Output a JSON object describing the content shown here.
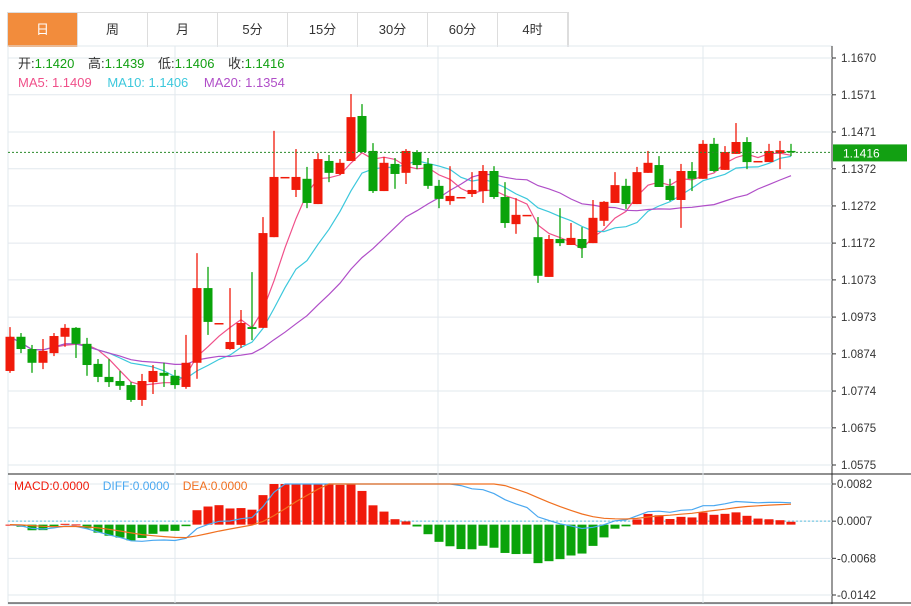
{
  "tabs": [
    "日",
    "周",
    "月",
    "5分",
    "15分",
    "30分",
    "60分",
    "4时"
  ],
  "active_tab": 0,
  "legend": {
    "open_label": "开:",
    "open": "1.1420",
    "high_label": "高:",
    "high": "1.1439",
    "low_label": "低:",
    "low": "1.1406",
    "close_label": "收:",
    "close": "1.1416",
    "ma5": "MA5: 1.1409",
    "ma10": "MA10: 1.1406",
    "ma20": "MA20: 1.1354"
  },
  "macd_legend": {
    "macd": "MACD:0.0000",
    "diff": "DIFF:0.0000",
    "dea": "DEA:0.0000"
  },
  "current_price": "1.1416",
  "colors": {
    "up": "#f01a0a",
    "down": "#0aa30a",
    "ma5": "#f0508a",
    "ma10": "#3cc8dc",
    "ma20": "#b04ec8",
    "diff": "#4aa8f0",
    "dea": "#f07020",
    "accent": "#f28c3c"
  },
  "chart_data": {
    "type": "candlestick",
    "price_axis": {
      "ylim": [
        1.0575,
        1.167
      ],
      "ticks": [
        "1.1670",
        "1.1571",
        "1.1471",
        "1.1372",
        "1.1272",
        "1.1172",
        "1.1073",
        "1.0973",
        "1.0874",
        "1.0774",
        "1.0675",
        "1.0575"
      ]
    },
    "macd_axis": {
      "ylim": [
        -0.0142,
        0.0082
      ],
      "ticks": [
        "0.0082",
        "0.0007",
        "-0.0068",
        "-0.0142"
      ]
    },
    "ohlc": [
      [
        1.0828,
        1.0946,
        1.0823,
        1.092
      ],
      [
        1.092,
        1.093,
        1.0876,
        1.0887
      ],
      [
        1.0887,
        1.0898,
        1.0823,
        1.085
      ],
      [
        1.085,
        1.0914,
        1.0833,
        1.0882
      ],
      [
        1.0876,
        1.093,
        1.0868,
        1.0922
      ],
      [
        1.092,
        1.0954,
        1.0893,
        1.0944
      ],
      [
        1.0944,
        1.0946,
        1.0863,
        1.0901
      ],
      [
        1.0901,
        1.0917,
        1.0815,
        1.0844
      ],
      [
        1.0847,
        1.086,
        1.0798,
        1.0812
      ],
      [
        1.0812,
        1.086,
        1.0785,
        1.0798
      ],
      [
        1.0801,
        1.0828,
        1.0777,
        1.0788
      ],
      [
        1.079,
        1.0798,
        1.0745,
        1.075
      ],
      [
        1.075,
        1.082,
        1.0734,
        1.0801
      ],
      [
        1.0798,
        1.0844,
        1.0766,
        1.0828
      ],
      [
        1.0823,
        1.085,
        1.0785,
        1.0815
      ],
      [
        1.0815,
        1.0831,
        1.078,
        1.079
      ],
      [
        1.0785,
        1.0925,
        1.078,
        1.085
      ],
      [
        1.085,
        1.1145,
        1.0807,
        1.1051
      ],
      [
        1.1051,
        1.1108,
        1.0925,
        1.096
      ],
      [
        1.0957,
        1.0957,
        1.0957,
        1.0957
      ],
      [
        1.0887,
        1.1051,
        1.0885,
        1.0906
      ],
      [
        1.0898,
        1.0992,
        1.089,
        1.0957
      ],
      [
        1.0946,
        1.1094,
        1.0911,
        1.0941
      ],
      [
        1.0944,
        1.1242,
        1.0944,
        1.1199
      ],
      [
        1.1188,
        1.1474,
        1.1188,
        1.135
      ],
      [
        1.135,
        1.135,
        1.135,
        1.135
      ],
      [
        1.1315,
        1.1425,
        1.1296,
        1.135
      ],
      [
        1.1345,
        1.1377,
        1.1266,
        1.128
      ],
      [
        1.1277,
        1.1414,
        1.1277,
        1.1398
      ],
      [
        1.1393,
        1.1409,
        1.1336,
        1.1361
      ],
      [
        1.1358,
        1.1398,
        1.1355,
        1.1388
      ],
      [
        1.1393,
        1.1573,
        1.1393,
        1.1511
      ],
      [
        1.1514,
        1.1546,
        1.1417,
        1.1417
      ],
      [
        1.142,
        1.1441,
        1.1307,
        1.1312
      ],
      [
        1.1312,
        1.1404,
        1.1312,
        1.1388
      ],
      [
        1.1385,
        1.1401,
        1.1318,
        1.1358
      ],
      [
        1.1361,
        1.1425,
        1.1331,
        1.142
      ],
      [
        1.1417,
        1.1422,
        1.1371,
        1.1382
      ],
      [
        1.1385,
        1.1401,
        1.1318,
        1.1326
      ],
      [
        1.1326,
        1.1342,
        1.1266,
        1.1291
      ],
      [
        1.1285,
        1.1379,
        1.1275,
        1.1299
      ],
      [
        1.1296,
        1.1296,
        1.1296,
        1.1296
      ],
      [
        1.1304,
        1.1363,
        1.1296,
        1.1315
      ],
      [
        1.1312,
        1.1382,
        1.128,
        1.1366
      ],
      [
        1.1366,
        1.1379,
        1.1291,
        1.1296
      ],
      [
        1.1296,
        1.1336,
        1.1213,
        1.1226
      ],
      [
        1.1223,
        1.1293,
        1.1197,
        1.1248
      ],
      [
        1.1248,
        1.1248,
        1.1248,
        1.1248
      ],
      [
        1.1188,
        1.1242,
        1.1065,
        1.1084
      ],
      [
        1.1081,
        1.1194,
        1.1081,
        1.1183
      ],
      [
        1.1183,
        1.1266,
        1.1164,
        1.1172
      ],
      [
        1.1167,
        1.1226,
        1.1167,
        1.1186
      ],
      [
        1.1183,
        1.1215,
        1.1132,
        1.1159
      ],
      [
        1.1172,
        1.1288,
        1.1172,
        1.124
      ],
      [
        1.1232,
        1.1285,
        1.1218,
        1.1283
      ],
      [
        1.128,
        1.1363,
        1.128,
        1.1328
      ],
      [
        1.1326,
        1.1345,
        1.1264,
        1.1277
      ],
      [
        1.1277,
        1.1377,
        1.1277,
        1.1363
      ],
      [
        1.1361,
        1.142,
        1.1361,
        1.1388
      ],
      [
        1.1382,
        1.1406,
        1.1323,
        1.1323
      ],
      [
        1.1326,
        1.1345,
        1.1285,
        1.1288
      ],
      [
        1.1288,
        1.1385,
        1.1213,
        1.1366
      ],
      [
        1.1366,
        1.139,
        1.1312,
        1.1345
      ],
      [
        1.1345,
        1.1449,
        1.1345,
        1.1439
      ],
      [
        1.1439,
        1.1455,
        1.1363,
        1.1366
      ],
      [
        1.1369,
        1.1433,
        1.1369,
        1.1417
      ],
      [
        1.1412,
        1.1495,
        1.1412,
        1.1444
      ],
      [
        1.1444,
        1.1457,
        1.1371,
        1.139
      ],
      [
        1.1393,
        1.1393,
        1.1393,
        1.1393
      ],
      [
        1.139,
        1.1439,
        1.139,
        1.142
      ],
      [
        1.1414,
        1.1447,
        1.1371,
        1.1422
      ],
      [
        1.142,
        1.1439,
        1.1406,
        1.1416
      ]
    ]
  }
}
